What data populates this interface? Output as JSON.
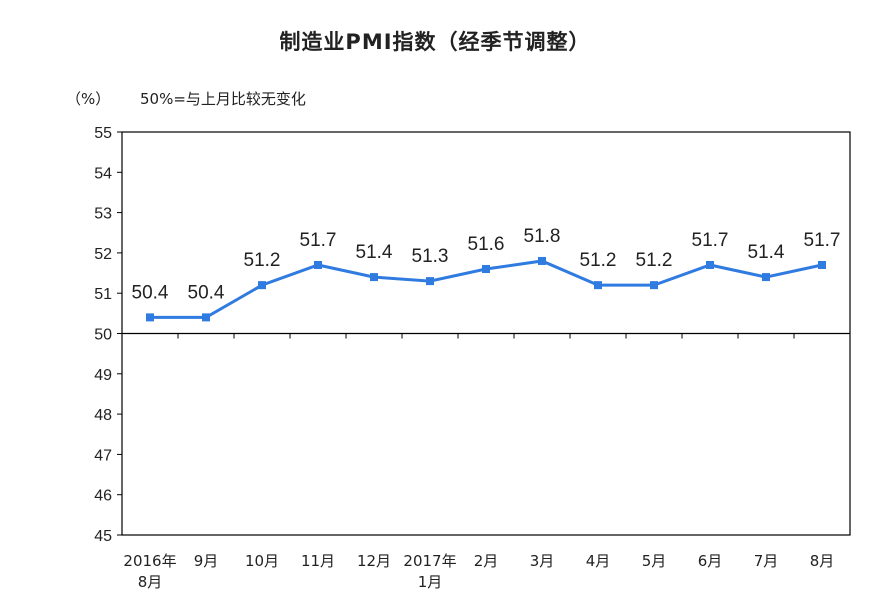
{
  "chart_data": {
    "type": "line",
    "title": "制造业PMI指数（经季节调整）",
    "unit_label": "（%）",
    "note": "50%=与上月比较无变化",
    "ylim": [
      45,
      55
    ],
    "y_ticks": [
      55,
      54,
      53,
      52,
      51,
      50,
      49,
      48,
      47,
      46,
      45
    ],
    "reference_line": 50,
    "grid": false,
    "categories": [
      [
        "2016年",
        "8月"
      ],
      [
        "9月"
      ],
      [
        "10月"
      ],
      [
        "11月"
      ],
      [
        "12月"
      ],
      [
        "2017年",
        "1月"
      ],
      [
        "2月"
      ],
      [
        "3月"
      ],
      [
        "4月"
      ],
      [
        "5月"
      ],
      [
        "6月"
      ],
      [
        "7月"
      ],
      [
        "8月"
      ]
    ],
    "series": [
      {
        "values": [
          50.4,
          50.4,
          51.2,
          51.7,
          51.4,
          51.3,
          51.6,
          51.8,
          51.2,
          51.2,
          51.7,
          51.4,
          51.7
        ],
        "data_labels": [
          "50.4",
          "50.4",
          "51.2",
          "51.7",
          "51.4",
          "51.3",
          "51.6",
          "51.8",
          "51.2",
          "51.2",
          "51.7",
          "51.4",
          "51.7"
        ],
        "color": "#2f7be0"
      }
    ],
    "axis_color": "#000000"
  }
}
